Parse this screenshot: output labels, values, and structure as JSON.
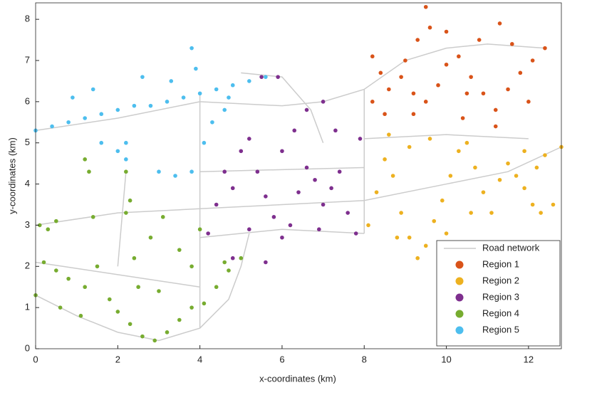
{
  "chart_data": {
    "type": "scatter",
    "xlabel": "x-coordinates (km)",
    "ylabel": "y-coordinates (km)",
    "xlim": [
      0,
      12.8
    ],
    "ylim": [
      0,
      8.4
    ],
    "xticks": [
      0,
      2,
      4,
      6,
      8,
      10,
      12
    ],
    "yticks": [
      0,
      1,
      2,
      3,
      4,
      5,
      6,
      7,
      8
    ],
    "legend": "southeast",
    "series": [
      {
        "name": "Road network",
        "style": "line",
        "color": "#cccccc",
        "x": [
          0,
          2,
          4,
          6,
          7,
          8,
          9,
          10,
          11,
          12.4,
          null,
          0,
          2,
          4,
          6,
          8,
          10,
          11.5,
          12.8,
          null,
          4,
          6,
          8,
          null,
          0,
          1,
          2,
          3,
          4,
          4.7,
          5,
          5.2,
          null,
          0,
          2,
          4,
          null,
          4,
          4,
          null,
          8,
          8,
          null,
          4,
          8,
          null,
          8,
          10,
          12,
          null,
          5,
          6,
          6.7,
          7,
          null,
          2.2,
          2
        ],
        "y": [
          5.3,
          5.6,
          6,
          5.9,
          6,
          6.3,
          7,
          7.3,
          7.4,
          7.3,
          null,
          3.0,
          3.3,
          3.4,
          3.5,
          3.6,
          4,
          4.3,
          4.9,
          null,
          2.7,
          2.9,
          2.8,
          null,
          1.3,
          0.8,
          0.4,
          0.2,
          0.5,
          1.2,
          2.0,
          2.8,
          null,
          2.1,
          1.8,
          1.5,
          null,
          0.5,
          6.2,
          null,
          2.8,
          6.3,
          null,
          4.3,
          4.4,
          null,
          5.1,
          5.2,
          5.1,
          null,
          6.7,
          6.6,
          5.8,
          5,
          null,
          4.3,
          2
        ]
      },
      {
        "name": "Region 1",
        "style": "dot",
        "color": "#d95319",
        "x": [
          8.4,
          8.2,
          8.6,
          8.9,
          9.2,
          9.5,
          9.8,
          10,
          10.3,
          10.6,
          10.9,
          11.2,
          11.5,
          11.8,
          12.1,
          12.4,
          9.5,
          9.6,
          9.3,
          10,
          10.8,
          11.3,
          11.6,
          10.4,
          9.2,
          8.5,
          8.2,
          9,
          11.2,
          12,
          10.5
        ],
        "y": [
          6.7,
          7.1,
          6.3,
          6.6,
          6.2,
          6.0,
          6.4,
          6.9,
          7.1,
          6.6,
          6.2,
          5.8,
          6.3,
          6.7,
          7.0,
          7.3,
          8.3,
          7.8,
          7.5,
          7.7,
          7.5,
          7.9,
          7.4,
          5.6,
          5.7,
          5.7,
          6.0,
          7.0,
          5.4,
          6.0,
          6.2
        ]
      },
      {
        "name": "Region 2",
        "style": "dot",
        "color": "#edb120",
        "x": [
          8.1,
          8.3,
          8.5,
          8.7,
          8.9,
          9.1,
          9.3,
          9.5,
          9.7,
          9.9,
          10.1,
          10.3,
          10.5,
          10.7,
          10.9,
          11.1,
          11.3,
          11.5,
          11.7,
          11.9,
          12.1,
          12.3,
          12.6,
          12.8,
          12.4,
          12.2,
          11.9,
          9.6,
          9.1,
          8.6,
          10.0,
          10.6,
          8.8
        ],
        "y": [
          3.0,
          3.8,
          4.6,
          4.2,
          3.3,
          2.7,
          2.2,
          2.5,
          3.1,
          3.6,
          4.2,
          4.8,
          5.0,
          4.4,
          3.8,
          3.3,
          4.1,
          4.5,
          4.2,
          3.9,
          3.5,
          3.3,
          3.5,
          4.9,
          4.7,
          4.4,
          4.8,
          5.1,
          4.9,
          5.2,
          2.8,
          3.3,
          2.7
        ]
      },
      {
        "name": "Region 3",
        "style": "dot",
        "color": "#7e2f8e",
        "x": [
          4.2,
          4.4,
          4.6,
          4.8,
          5.0,
          5.2,
          5.4,
          5.6,
          5.8,
          6.0,
          6.2,
          6.4,
          6.6,
          6.8,
          7.0,
          7.2,
          7.4,
          7.6,
          7.8,
          6.0,
          6.3,
          5.5,
          5.9,
          6.6,
          7.0,
          7.3,
          5.6,
          5.2,
          4.8,
          6.9,
          7.9
        ],
        "y": [
          2.8,
          3.5,
          4.3,
          3.9,
          4.8,
          5.1,
          4.3,
          3.7,
          3.2,
          2.7,
          3.0,
          3.8,
          4.4,
          4.1,
          3.5,
          3.9,
          4.3,
          3.3,
          2.8,
          4.8,
          5.3,
          6.6,
          6.6,
          5.8,
          6.0,
          5.3,
          2.1,
          2.9,
          2.2,
          2.9,
          5.1
        ]
      },
      {
        "name": "Region 4",
        "style": "dot",
        "color": "#77ac30",
        "x": [
          0.1,
          0.3,
          0.5,
          0.2,
          0.5,
          0.8,
          1.2,
          1.5,
          1.8,
          2.0,
          2.3,
          2.6,
          2.9,
          3.2,
          3.5,
          3.8,
          4.1,
          4.4,
          4.7,
          5.0,
          0.0,
          0.6,
          1.1,
          2.2,
          2.3,
          2.4,
          2.8,
          3.1,
          3.5,
          3.8,
          4.0,
          1.4,
          1.3,
          2.2,
          2.5,
          3.0,
          4.6,
          1.2
        ],
        "y": [
          3.0,
          2.9,
          3.1,
          2.1,
          1.9,
          1.7,
          1.5,
          2.0,
          1.2,
          0.9,
          0.6,
          0.3,
          0.2,
          0.4,
          0.7,
          1.0,
          1.1,
          1.5,
          1.9,
          2.2,
          1.3,
          1.0,
          0.8,
          3.3,
          3.6,
          2.2,
          2.7,
          3.2,
          2.4,
          2.0,
          2.9,
          3.2,
          4.3,
          4.3,
          1.5,
          1.4,
          2.1,
          4.6
        ]
      },
      {
        "name": "Region 5",
        "style": "dot",
        "color": "#4dbeee",
        "x": [
          0.0,
          0.4,
          0.8,
          1.2,
          1.6,
          2.0,
          2.4,
          2.8,
          3.2,
          3.6,
          4.0,
          4.4,
          4.8,
          5.2,
          5.6,
          3.8,
          3.9,
          3.3,
          2.6,
          1.4,
          0.9,
          2.2,
          2.2,
          2.0,
          3.0,
          3.8,
          4.1,
          4.3,
          4.6,
          4.7,
          3.4,
          1.6
        ],
        "y": [
          5.3,
          5.4,
          5.5,
          5.6,
          5.7,
          5.8,
          5.9,
          5.9,
          6.0,
          6.1,
          6.2,
          6.3,
          6.4,
          6.5,
          6.6,
          7.3,
          6.8,
          6.5,
          6.6,
          6.3,
          6.1,
          5.0,
          4.6,
          4.8,
          4.3,
          4.3,
          5.0,
          5.5,
          5.8,
          6.1,
          4.2,
          5.0
        ]
      }
    ]
  }
}
